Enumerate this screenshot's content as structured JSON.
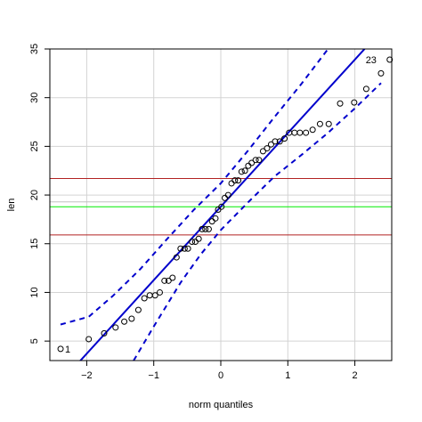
{
  "chart_data": {
    "type": "scatter",
    "title": "",
    "xlabel": "norm quantiles",
    "ylabel": "len",
    "xlim": [
      -2.55,
      2.55
    ],
    "ylim": [
      3.0,
      35.0
    ],
    "x_ticks": [
      -2,
      -1,
      0,
      1,
      2
    ],
    "y_ticks": [
      5,
      10,
      15,
      20,
      25,
      30,
      35
    ],
    "x_tick_labels": [
      "−2",
      "−1",
      "0",
      "1",
      "2"
    ],
    "y_tick_labels": [
      "5",
      "10",
      "15",
      "20",
      "25",
      "30",
      "35"
    ],
    "grid": true,
    "legend": "none",
    "points": [
      {
        "x": -2.39,
        "y": 4.2
      },
      {
        "x": -1.97,
        "y": 5.2
      },
      {
        "x": -1.74,
        "y": 5.8
      },
      {
        "x": -1.57,
        "y": 6.4
      },
      {
        "x": -1.44,
        "y": 7.0
      },
      {
        "x": -1.33,
        "y": 7.3
      },
      {
        "x": -1.23,
        "y": 8.2
      },
      {
        "x": -1.14,
        "y": 9.4
      },
      {
        "x": -1.06,
        "y": 9.7
      },
      {
        "x": -0.98,
        "y": 9.7
      },
      {
        "x": -0.91,
        "y": 10.0
      },
      {
        "x": -0.84,
        "y": 11.2
      },
      {
        "x": -0.78,
        "y": 11.2
      },
      {
        "x": -0.72,
        "y": 11.5
      },
      {
        "x": -0.66,
        "y": 13.6
      },
      {
        "x": -0.6,
        "y": 14.5
      },
      {
        "x": -0.54,
        "y": 14.5
      },
      {
        "x": -0.49,
        "y": 14.5
      },
      {
        "x": -0.43,
        "y": 15.2
      },
      {
        "x": -0.38,
        "y": 15.2
      },
      {
        "x": -0.33,
        "y": 15.5
      },
      {
        "x": -0.28,
        "y": 16.5
      },
      {
        "x": -0.23,
        "y": 16.5
      },
      {
        "x": -0.18,
        "y": 16.5
      },
      {
        "x": -0.13,
        "y": 17.3
      },
      {
        "x": -0.08,
        "y": 17.6
      },
      {
        "x": -0.04,
        "y": 18.5
      },
      {
        "x": 0.01,
        "y": 18.8
      },
      {
        "x": 0.06,
        "y": 19.7
      },
      {
        "x": 0.11,
        "y": 20.0
      },
      {
        "x": 0.16,
        "y": 21.2
      },
      {
        "x": 0.21,
        "y": 21.5
      },
      {
        "x": 0.26,
        "y": 21.5
      },
      {
        "x": 0.31,
        "y": 22.4
      },
      {
        "x": 0.36,
        "y": 22.5
      },
      {
        "x": 0.41,
        "y": 23.0
      },
      {
        "x": 0.46,
        "y": 23.3
      },
      {
        "x": 0.52,
        "y": 23.6
      },
      {
        "x": 0.57,
        "y": 23.6
      },
      {
        "x": 0.63,
        "y": 24.5
      },
      {
        "x": 0.69,
        "y": 24.8
      },
      {
        "x": 0.75,
        "y": 25.2
      },
      {
        "x": 0.81,
        "y": 25.5
      },
      {
        "x": 0.88,
        "y": 25.5
      },
      {
        "x": 0.95,
        "y": 25.8
      },
      {
        "x": 1.02,
        "y": 26.4
      },
      {
        "x": 1.1,
        "y": 26.4
      },
      {
        "x": 1.18,
        "y": 26.4
      },
      {
        "x": 1.27,
        "y": 26.4
      },
      {
        "x": 1.37,
        "y": 26.7
      },
      {
        "x": 1.48,
        "y": 27.3
      },
      {
        "x": 1.61,
        "y": 27.3
      },
      {
        "x": 1.78,
        "y": 29.4
      },
      {
        "x": 1.99,
        "y": 29.5
      },
      {
        "x": 2.17,
        "y": 30.9
      },
      {
        "x": 2.39,
        "y": 32.5
      },
      {
        "x": 2.52,
        "y": 33.9
      }
    ],
    "point_labels": [
      {
        "text": "1",
        "x": -2.39,
        "y": 4.2,
        "side": "right"
      },
      {
        "text": "23",
        "x": 2.39,
        "y": 33.9,
        "side": "left"
      }
    ],
    "fit_line": {
      "slope": 7.55,
      "intercept": 18.81,
      "color": "#0000CC"
    },
    "confidence_band": {
      "color": "#0000CC",
      "upper": [
        [
          -2.39,
          6.7
        ],
        [
          -1.97,
          7.5
        ],
        [
          -1.6,
          9.7
        ],
        [
          -1.2,
          12.4
        ],
        [
          -0.8,
          15.5
        ],
        [
          -0.4,
          18.5
        ],
        [
          0.0,
          21.2
        ],
        [
          0.4,
          24.5
        ],
        [
          0.8,
          28.0
        ],
        [
          1.2,
          31.4
        ],
        [
          1.6,
          35.0
        ]
      ],
      "lower": [
        [
          -1.3,
          3.0
        ],
        [
          -1.0,
          6.5
        ],
        [
          -0.6,
          11.0
        ],
        [
          -0.3,
          13.9
        ],
        [
          0.0,
          16.4
        ],
        [
          0.4,
          19.2
        ],
        [
          0.8,
          21.9
        ],
        [
          1.2,
          24.1
        ],
        [
          1.6,
          26.4
        ],
        [
          2.0,
          28.9
        ],
        [
          2.39,
          31.5
        ]
      ]
    },
    "hlines": [
      {
        "y": 21.7,
        "color": "#B22222"
      },
      {
        "y": 19.3,
        "color": "#C0C0C0"
      },
      {
        "y": 18.8,
        "color": "#00EE00"
      },
      {
        "y": 15.9,
        "color": "#B22222"
      }
    ]
  }
}
